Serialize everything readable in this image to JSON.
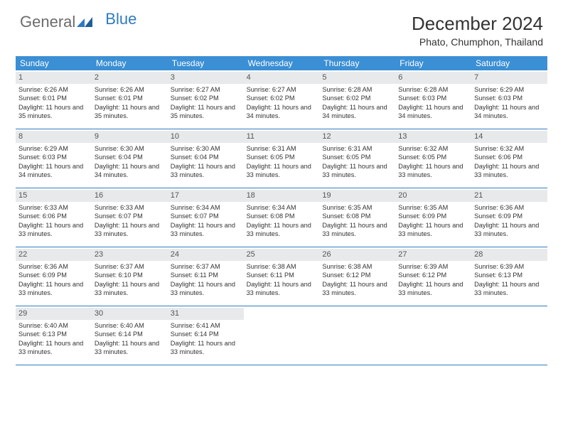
{
  "logo": {
    "general": "General",
    "blue": "Blue"
  },
  "title": "December 2024",
  "location": "Phato, Chumphon, Thailand",
  "colors": {
    "header_bg": "#3b8fd4",
    "header_text": "#ffffff",
    "daynum_bg": "#e8e9eb",
    "border": "#2f7bbf",
    "text": "#333333"
  },
  "fonts": {
    "title_size": 26,
    "location_size": 14,
    "dayheader_size": 12,
    "cell_size": 9.2
  },
  "day_labels": [
    "Sunday",
    "Monday",
    "Tuesday",
    "Wednesday",
    "Thursday",
    "Friday",
    "Saturday"
  ],
  "days": [
    {
      "n": 1,
      "sunrise": "6:26 AM",
      "sunset": "6:01 PM",
      "daylight": "11 hours and 35 minutes."
    },
    {
      "n": 2,
      "sunrise": "6:26 AM",
      "sunset": "6:01 PM",
      "daylight": "11 hours and 35 minutes."
    },
    {
      "n": 3,
      "sunrise": "6:27 AM",
      "sunset": "6:02 PM",
      "daylight": "11 hours and 35 minutes."
    },
    {
      "n": 4,
      "sunrise": "6:27 AM",
      "sunset": "6:02 PM",
      "daylight": "11 hours and 34 minutes."
    },
    {
      "n": 5,
      "sunrise": "6:28 AM",
      "sunset": "6:02 PM",
      "daylight": "11 hours and 34 minutes."
    },
    {
      "n": 6,
      "sunrise": "6:28 AM",
      "sunset": "6:03 PM",
      "daylight": "11 hours and 34 minutes."
    },
    {
      "n": 7,
      "sunrise": "6:29 AM",
      "sunset": "6:03 PM",
      "daylight": "11 hours and 34 minutes."
    },
    {
      "n": 8,
      "sunrise": "6:29 AM",
      "sunset": "6:03 PM",
      "daylight": "11 hours and 34 minutes."
    },
    {
      "n": 9,
      "sunrise": "6:30 AM",
      "sunset": "6:04 PM",
      "daylight": "11 hours and 34 minutes."
    },
    {
      "n": 10,
      "sunrise": "6:30 AM",
      "sunset": "6:04 PM",
      "daylight": "11 hours and 33 minutes."
    },
    {
      "n": 11,
      "sunrise": "6:31 AM",
      "sunset": "6:05 PM",
      "daylight": "11 hours and 33 minutes."
    },
    {
      "n": 12,
      "sunrise": "6:31 AM",
      "sunset": "6:05 PM",
      "daylight": "11 hours and 33 minutes."
    },
    {
      "n": 13,
      "sunrise": "6:32 AM",
      "sunset": "6:05 PM",
      "daylight": "11 hours and 33 minutes."
    },
    {
      "n": 14,
      "sunrise": "6:32 AM",
      "sunset": "6:06 PM",
      "daylight": "11 hours and 33 minutes."
    },
    {
      "n": 15,
      "sunrise": "6:33 AM",
      "sunset": "6:06 PM",
      "daylight": "11 hours and 33 minutes."
    },
    {
      "n": 16,
      "sunrise": "6:33 AM",
      "sunset": "6:07 PM",
      "daylight": "11 hours and 33 minutes."
    },
    {
      "n": 17,
      "sunrise": "6:34 AM",
      "sunset": "6:07 PM",
      "daylight": "11 hours and 33 minutes."
    },
    {
      "n": 18,
      "sunrise": "6:34 AM",
      "sunset": "6:08 PM",
      "daylight": "11 hours and 33 minutes."
    },
    {
      "n": 19,
      "sunrise": "6:35 AM",
      "sunset": "6:08 PM",
      "daylight": "11 hours and 33 minutes."
    },
    {
      "n": 20,
      "sunrise": "6:35 AM",
      "sunset": "6:09 PM",
      "daylight": "11 hours and 33 minutes."
    },
    {
      "n": 21,
      "sunrise": "6:36 AM",
      "sunset": "6:09 PM",
      "daylight": "11 hours and 33 minutes."
    },
    {
      "n": 22,
      "sunrise": "6:36 AM",
      "sunset": "6:09 PM",
      "daylight": "11 hours and 33 minutes."
    },
    {
      "n": 23,
      "sunrise": "6:37 AM",
      "sunset": "6:10 PM",
      "daylight": "11 hours and 33 minutes."
    },
    {
      "n": 24,
      "sunrise": "6:37 AM",
      "sunset": "6:11 PM",
      "daylight": "11 hours and 33 minutes."
    },
    {
      "n": 25,
      "sunrise": "6:38 AM",
      "sunset": "6:11 PM",
      "daylight": "11 hours and 33 minutes."
    },
    {
      "n": 26,
      "sunrise": "6:38 AM",
      "sunset": "6:12 PM",
      "daylight": "11 hours and 33 minutes."
    },
    {
      "n": 27,
      "sunrise": "6:39 AM",
      "sunset": "6:12 PM",
      "daylight": "11 hours and 33 minutes."
    },
    {
      "n": 28,
      "sunrise": "6:39 AM",
      "sunset": "6:13 PM",
      "daylight": "11 hours and 33 minutes."
    },
    {
      "n": 29,
      "sunrise": "6:40 AM",
      "sunset": "6:13 PM",
      "daylight": "11 hours and 33 minutes."
    },
    {
      "n": 30,
      "sunrise": "6:40 AM",
      "sunset": "6:14 PM",
      "daylight": "11 hours and 33 minutes."
    },
    {
      "n": 31,
      "sunrise": "6:41 AM",
      "sunset": "6:14 PM",
      "daylight": "11 hours and 33 minutes."
    }
  ],
  "labels": {
    "sunrise": "Sunrise:",
    "sunset": "Sunset:",
    "daylight": "Daylight:"
  },
  "layout": {
    "first_day_column": 0,
    "total_cells": 35
  }
}
